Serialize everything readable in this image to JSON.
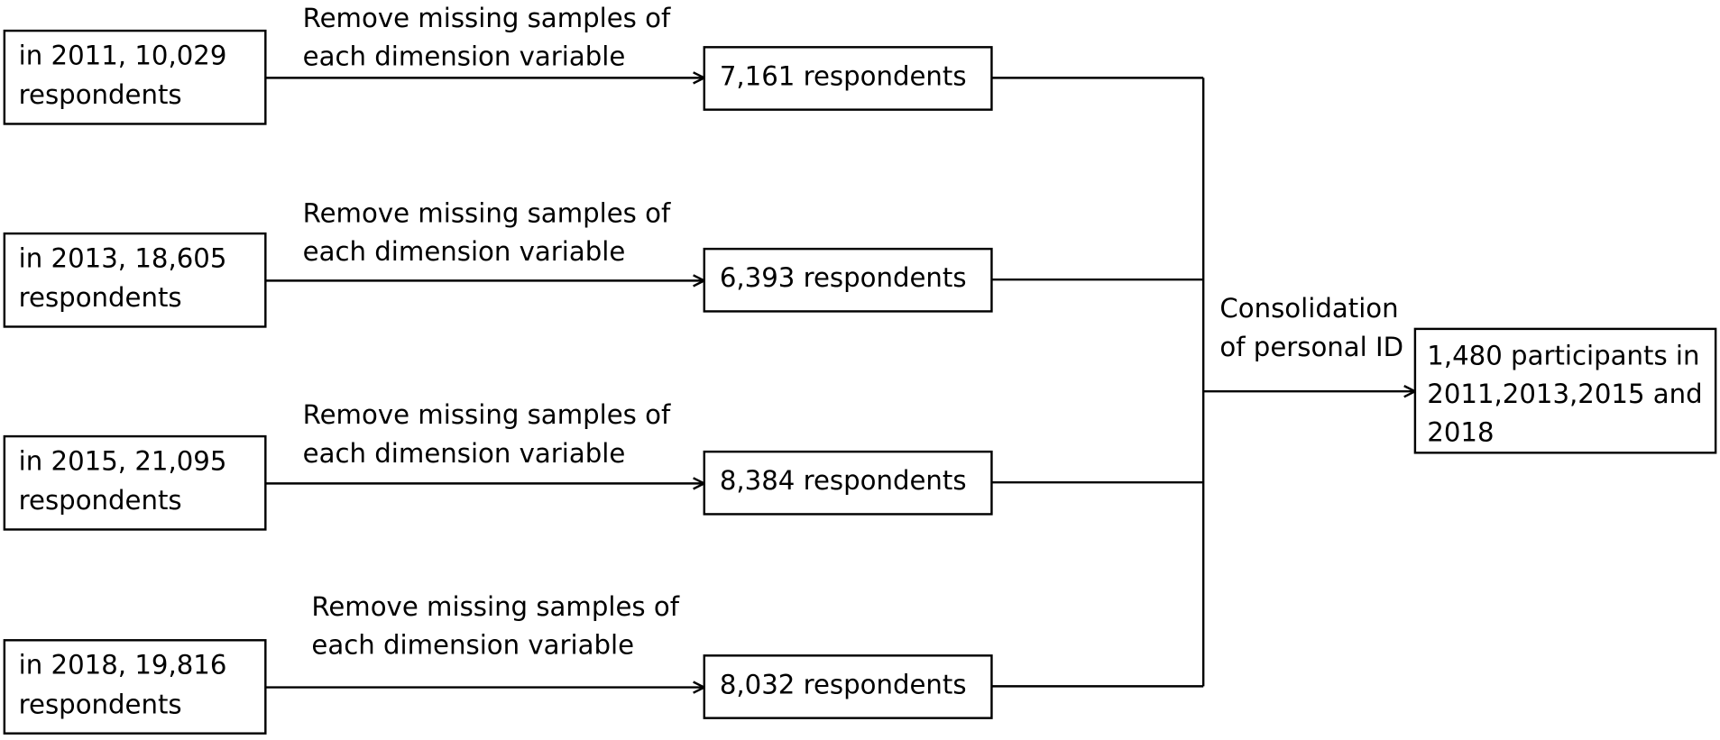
{
  "rows": [
    {
      "source": [
        "in 2011, 10,029",
        "respondents"
      ],
      "step": [
        "Remove missing samples of",
        "each dimension variable"
      ],
      "result": "7,161 respondents"
    },
    {
      "source": [
        "in 2013, 18,605",
        "respondents"
      ],
      "step": [
        "Remove missing samples of",
        "each dimension variable"
      ],
      "result": "6,393 respondents"
    },
    {
      "source": [
        "in 2015, 21,095",
        "respondents"
      ],
      "step": [
        "Remove missing samples of",
        "each dimension variable"
      ],
      "result": "8,384 respondents"
    },
    {
      "source": [
        "in 2018, 19,816",
        "respondents"
      ],
      "step": [
        "Remove missing samples of",
        "each dimension variable"
      ],
      "result": "8,032 respondents"
    }
  ],
  "consolidation": [
    "Consolidation",
    "of personal ID"
  ],
  "final": [
    "1,480 participants in",
    "2011,2013,2015 and",
    "2018"
  ]
}
